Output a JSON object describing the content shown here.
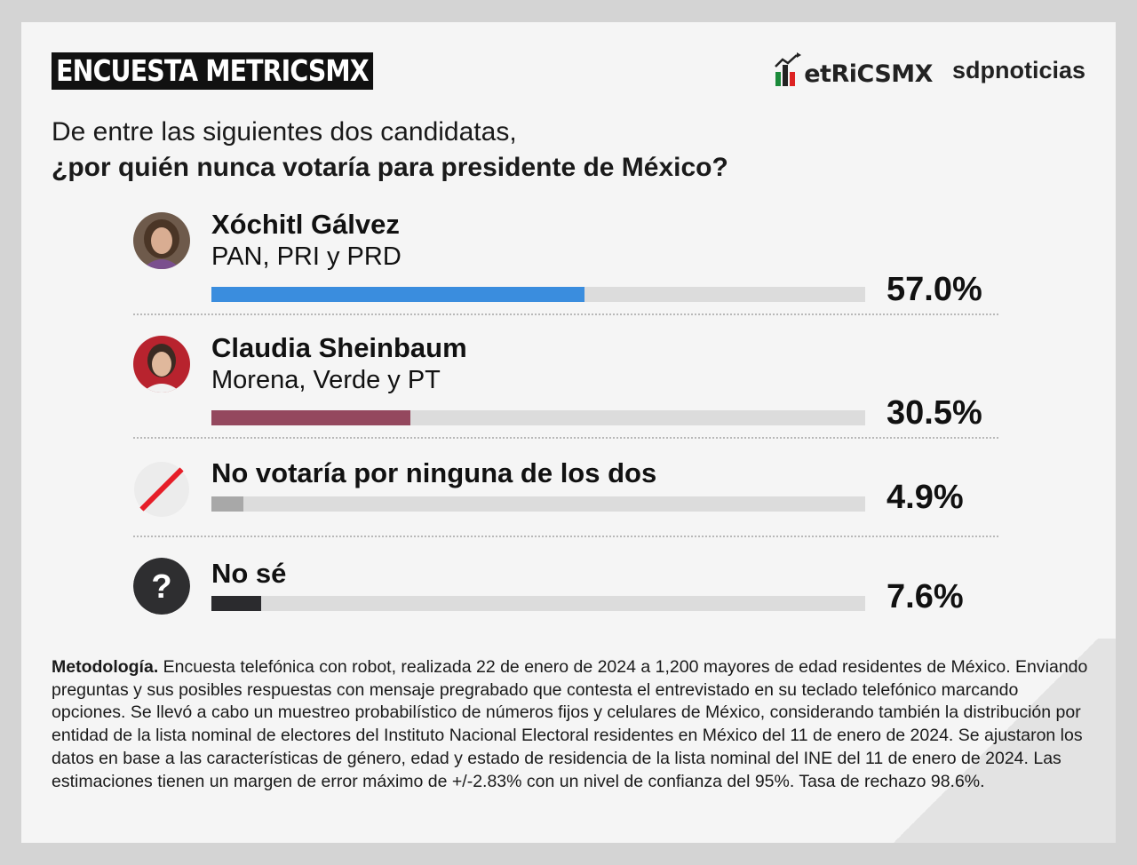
{
  "header": {
    "badge": "ENCUESTA METRICSMX",
    "metrics_logo": "etRiCSMX",
    "sdp_logo": "sdpnoticias"
  },
  "question": {
    "line1": "De entre las siguientes dos candidatas,",
    "line2": "¿por quién nunca votaría para presidente de México?"
  },
  "chart_data": {
    "type": "bar",
    "orientation": "horizontal",
    "categories": [
      "Xóchitl Gálvez",
      "Claudia Sheinbaum",
      "No votaría por ninguna de los dos",
      "No sé"
    ],
    "subtitles": [
      "PAN, PRI y PRD",
      "Morena, Verde y PT",
      "",
      ""
    ],
    "values": [
      57.0,
      30.5,
      4.9,
      7.6
    ],
    "labels": [
      "57.0%",
      "30.5%",
      "4.9%",
      "7.6%"
    ],
    "colors": [
      "#3a8dde",
      "#94485e",
      "#a8a8a8",
      "#2b2b2e"
    ],
    "icons": [
      "avatar-xochitl",
      "avatar-claudia",
      "slash-icon",
      "question-icon"
    ],
    "xlim": [
      0,
      100
    ],
    "grid": false
  },
  "methodology": {
    "label": "Metodología.",
    "text": " Encuesta telefónica con robot, realizada 22 de enero de 2024 a 1,200 mayores de edad residentes de México. Enviando preguntas y sus posibles respuestas con mensaje pregrabado que contesta el entrevistado en su teclado telefónico marcando opciones. Se llevó a cabo un muestreo probabilístico de números fijos y celulares de México, considerando también la distribución por entidad de la lista nominal de electores del Instituto Nacional Electoral residentes en México del 11 de enero de 2024. Se ajustaron los datos en base a las características de género, edad y estado de residencia de la lista nominal del INE del 11 de enero de 2024. Las estimaciones tienen un margen de error máximo de +/-2.83% con un nivel de confianza del 95%. Tasa de rechazo 98.6%."
  }
}
